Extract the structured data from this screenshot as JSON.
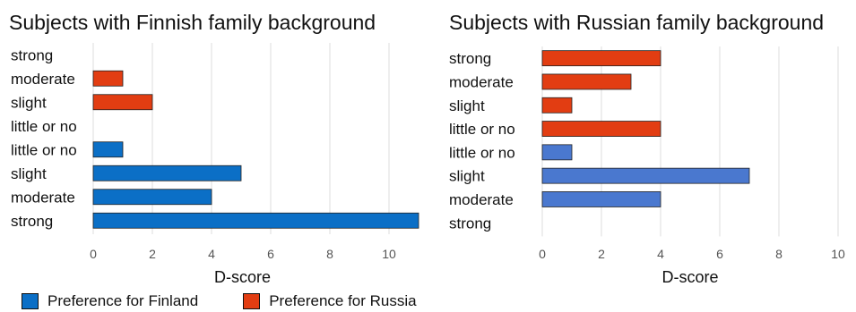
{
  "chart_data": [
    {
      "type": "bar",
      "orientation": "horizontal",
      "title": "Subjects with Finnish family background",
      "xlabel": "D-score",
      "xlim": [
        0,
        11
      ],
      "xticks": [
        0,
        2,
        4,
        6,
        8,
        10
      ],
      "categories": [
        "strong",
        "moderate",
        "slight",
        "little or no",
        "little or no",
        "slight",
        "moderate",
        "strong"
      ],
      "series": [
        {
          "name": "Preference for Russia",
          "color": "#e23d12",
          "values": [
            0,
            1,
            2,
            0,
            null,
            null,
            null,
            null
          ]
        },
        {
          "name": "Preference for Finland",
          "color": "#0b6fc6",
          "values": [
            null,
            null,
            null,
            null,
            1,
            5,
            4,
            11
          ]
        }
      ],
      "grid": "vertical"
    },
    {
      "type": "bar",
      "orientation": "horizontal",
      "title": "Subjects with Russian family background",
      "xlabel": "D-score",
      "xlim": [
        0,
        10
      ],
      "xticks": [
        0,
        2,
        4,
        6,
        8,
        10
      ],
      "categories": [
        "strong",
        "moderate",
        "slight",
        "little or no",
        "little or no",
        "slight",
        "moderate",
        "strong"
      ],
      "series": [
        {
          "name": "Preference for Russia",
          "color": "#e23d12",
          "values": [
            4,
            3,
            1,
            4,
            null,
            null,
            null,
            null
          ]
        },
        {
          "name": "Preference for Finland",
          "color": "#4a78cf",
          "values": [
            null,
            null,
            null,
            null,
            1,
            7,
            4,
            0
          ]
        }
      ],
      "grid": "vertical"
    }
  ],
  "legend": [
    {
      "label": "Preference for Finland",
      "color": "#0b6fc6"
    },
    {
      "label": "Preference for Russia",
      "color": "#e23d12"
    }
  ]
}
